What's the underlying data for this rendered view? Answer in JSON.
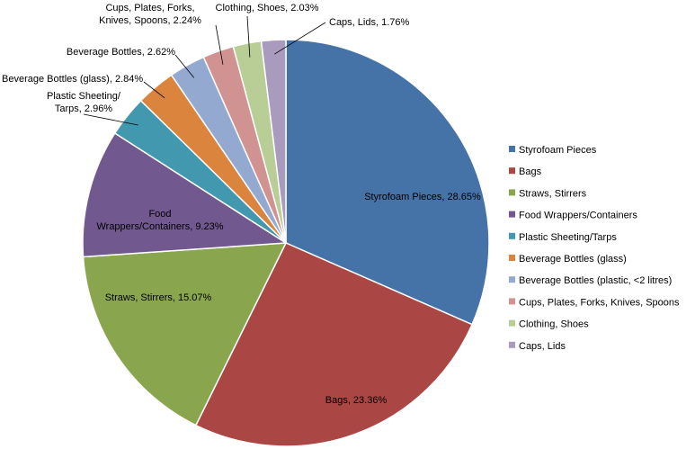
{
  "chart_data": {
    "type": "pie",
    "title": "",
    "slices": [
      {
        "name": "Styrofoam Pieces",
        "label": "Styrofoam Pieces, 28.65%",
        "value": 28.65,
        "color": "#4572A7"
      },
      {
        "name": "Bags",
        "label": "Bags, 23.36%",
        "value": 23.36,
        "color": "#AA4643"
      },
      {
        "name": "Straws, Stirrers",
        "label": "Straws, Stirrers, 15.07%",
        "value": 15.07,
        "color": "#89A54E"
      },
      {
        "name": "Food Wrappers/Containers",
        "label": [
          "Food",
          "Wrappers/Containers, 9.23%"
        ],
        "value": 9.23,
        "color": "#71588F"
      },
      {
        "name": "Plastic Sheeting/Tarps",
        "label": [
          "Plastic Sheeting/",
          "Tarps, 2.96%"
        ],
        "value": 2.96,
        "color": "#4198AF"
      },
      {
        "name": "Beverage Bottles (glass)",
        "label": "Beverage Bottles (glass), 2.84%",
        "value": 2.84,
        "color": "#DB843D"
      },
      {
        "name": "Beverage Bottles (plastic, <2 litres)",
        "label": "Beverage Bottles, 2.62%",
        "value": 2.62,
        "color": "#93A9CF"
      },
      {
        "name": "Cups, Plates, Forks, Knives, Spoons",
        "label": [
          "Cups, Plates, Forks,",
          "Knives, Spoons, 2.24%"
        ],
        "value": 2.24,
        "color": "#D19392"
      },
      {
        "name": "Clothing, Shoes",
        "label": "Clothing, Shoes, 2.03%",
        "value": 2.03,
        "color": "#B9CD96"
      },
      {
        "name": "Caps, Lids",
        "label": "Caps, Lids, 1.76%",
        "value": 1.76,
        "color": "#A99BBD"
      }
    ],
    "legend_position": "right"
  }
}
